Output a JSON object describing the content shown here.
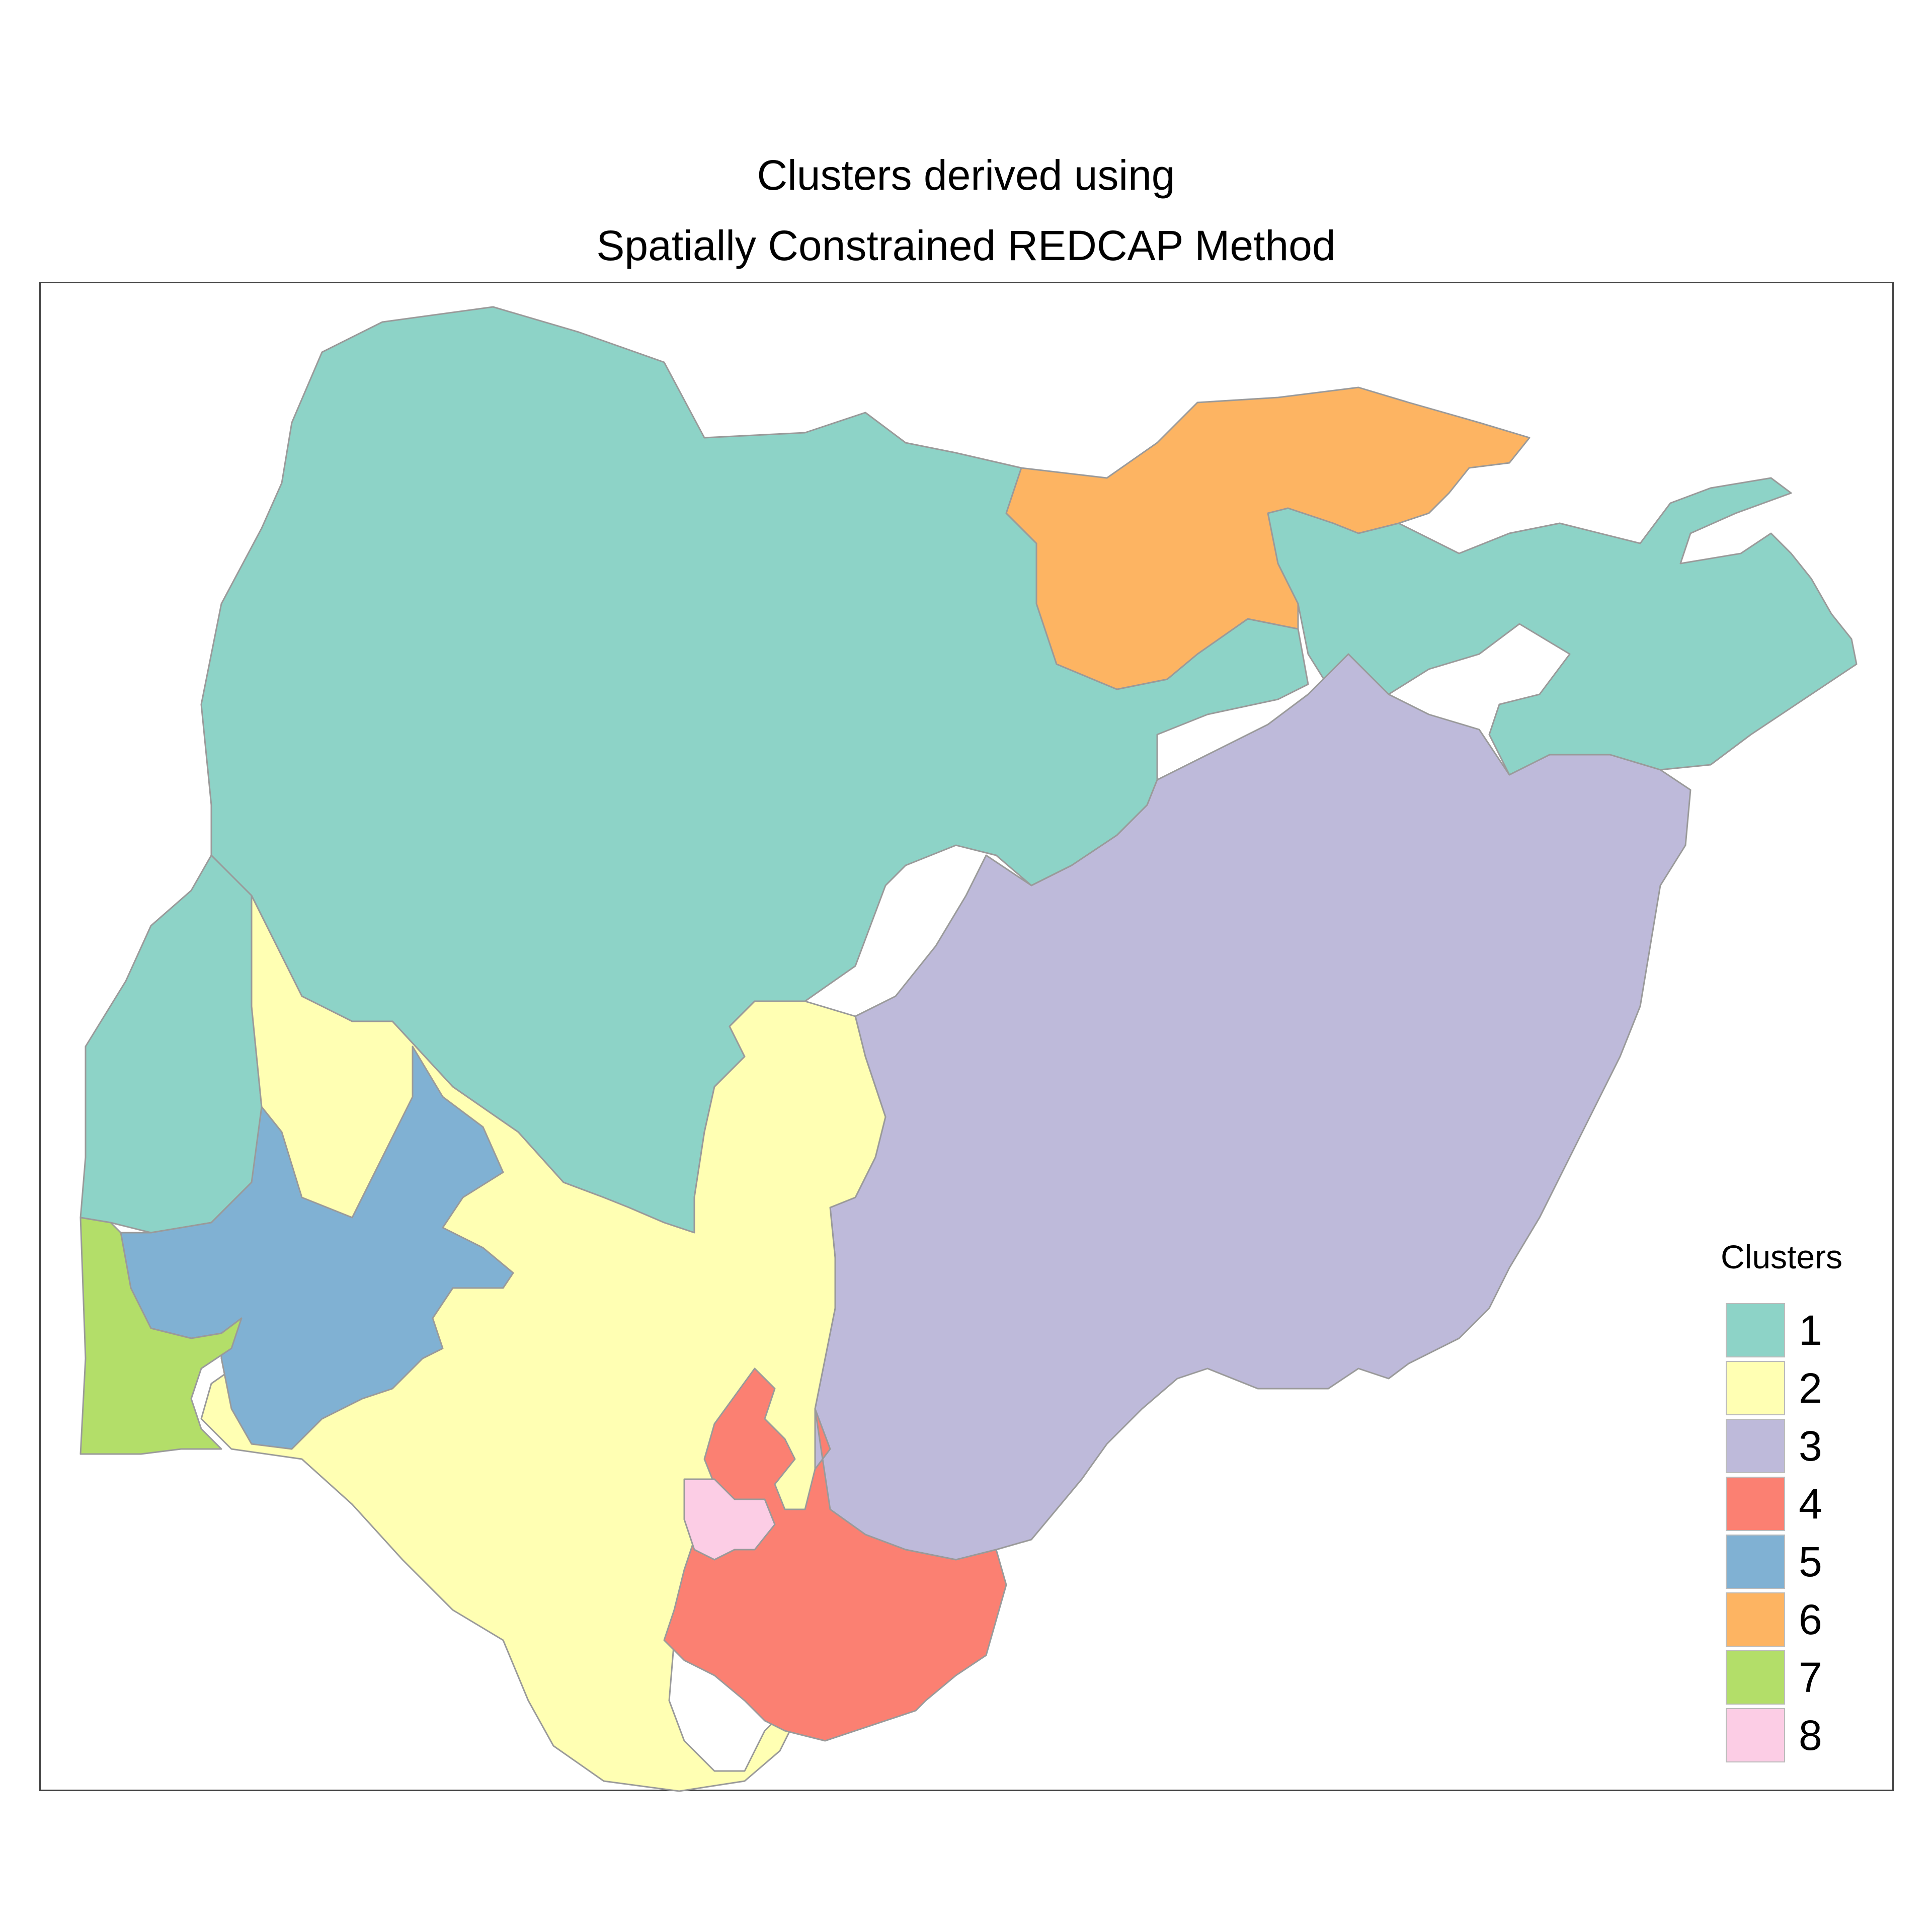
{
  "title_lines": [
    "Clusters derived using",
    "Spatially Constrained REDCAP Method"
  ],
  "legend": {
    "title": "Clusters",
    "items": [
      {
        "label": "1",
        "color": "#8DD3C7"
      },
      {
        "label": "2",
        "color": "#FFFFB3"
      },
      {
        "label": "3",
        "color": "#BEBADA"
      },
      {
        "label": "4",
        "color": "#FB8072"
      },
      {
        "label": "5",
        "color": "#80B1D3"
      },
      {
        "label": "6",
        "color": "#FDB462"
      },
      {
        "label": "7",
        "color": "#B3DE69"
      },
      {
        "label": "8",
        "color": "#FCCDE5"
      }
    ]
  }
}
